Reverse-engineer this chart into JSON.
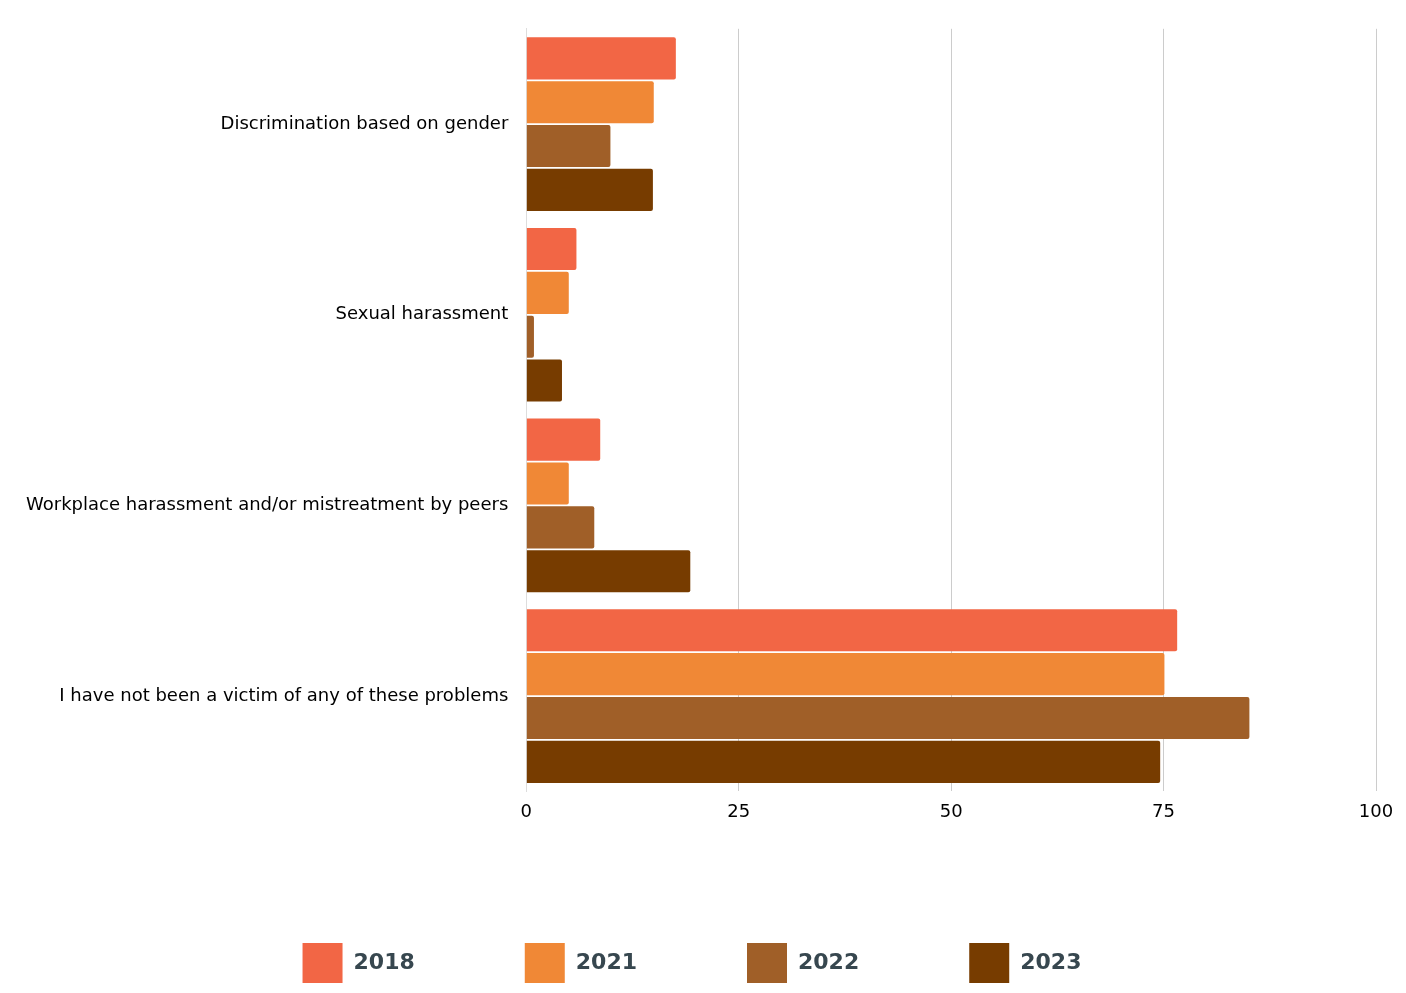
{
  "chart_data": {
    "type": "bar",
    "orientation": "horizontal",
    "categories": [
      "Discrimination based on gender",
      "Sexual harassment",
      "Workplace harassment and/or mistreatment by peers",
      "I have not been a victim of any of these problems"
    ],
    "series": [
      {
        "name": "2018",
        "color": "#f26645",
        "values": [
          17.6,
          5.9,
          8.7,
          76.6
        ]
      },
      {
        "name": "2021",
        "color": "#f08836",
        "values": [
          15.0,
          5.0,
          5.0,
          75.1
        ]
      },
      {
        "name": "2022",
        "color": "#a05f28",
        "values": [
          9.9,
          0.9,
          8.0,
          85.1
        ]
      },
      {
        "name": "2023",
        "color": "#773c00",
        "values": [
          14.9,
          4.2,
          19.3,
          74.6
        ]
      }
    ],
    "xlim": [
      0,
      100
    ],
    "xticks": [
      0,
      25,
      50,
      75,
      100
    ],
    "grid": "x",
    "legend": "bottom"
  }
}
